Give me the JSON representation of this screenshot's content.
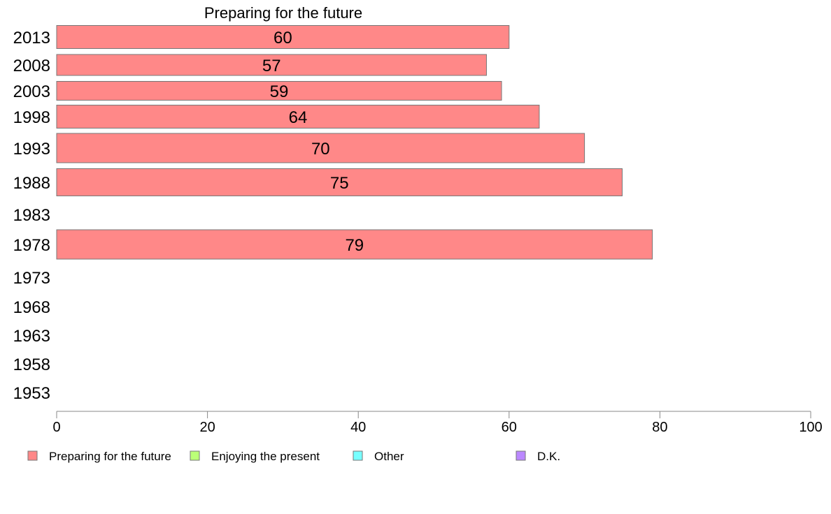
{
  "chart_data": {
    "type": "bar",
    "orientation": "horizontal",
    "title": "Preparing for the future",
    "categories": [
      "2013",
      "2008",
      "2003",
      "1998",
      "1993",
      "1988",
      "1983",
      "1978",
      "1973",
      "1968",
      "1963",
      "1958",
      "1953"
    ],
    "series": [
      {
        "name": "Preparing for the future",
        "color": "#ff8888",
        "values": [
          60,
          57,
          59,
          64,
          70,
          75,
          null,
          79,
          null,
          null,
          null,
          null,
          null
        ]
      },
      {
        "name": "Enjoying the present",
        "color": "#bbff77",
        "values": [
          null,
          null,
          null,
          null,
          null,
          null,
          null,
          null,
          null,
          null,
          null,
          null,
          null
        ]
      },
      {
        "name": "Other",
        "color": "#77ffff",
        "values": [
          null,
          null,
          null,
          null,
          null,
          null,
          null,
          null,
          null,
          null,
          null,
          null,
          null
        ]
      },
      {
        "name": "D.K.",
        "color": "#bb88ff",
        "values": [
          null,
          null,
          null,
          null,
          null,
          null,
          null,
          null,
          null,
          null,
          null,
          null,
          null
        ]
      }
    ],
    "xlim": [
      0,
      100
    ],
    "xticks": [
      0,
      20,
      40,
      60,
      80,
      100
    ],
    "grid": false,
    "legend_position": "bottom"
  }
}
